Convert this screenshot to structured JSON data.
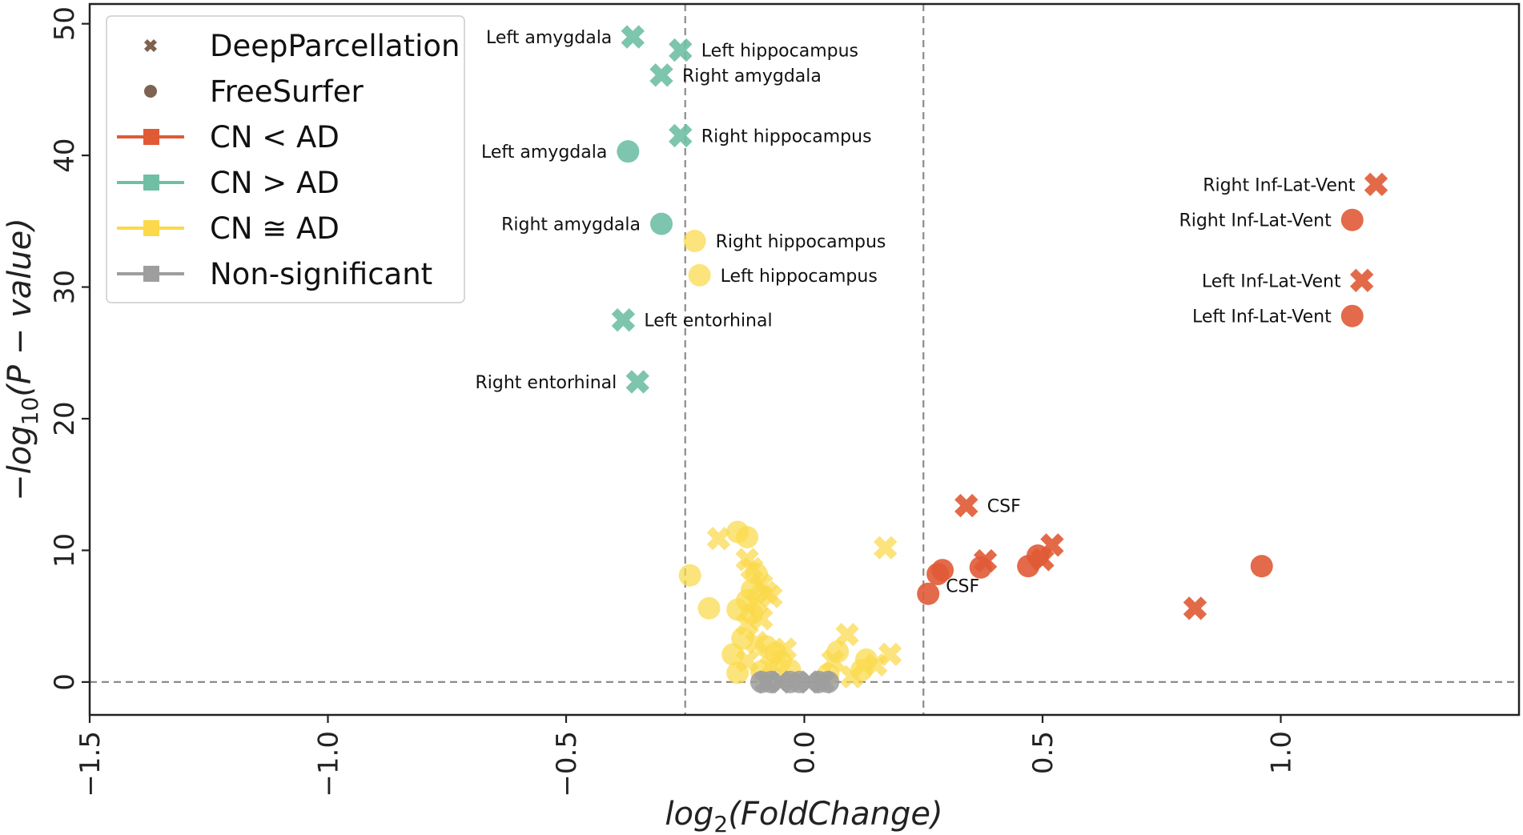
{
  "chart_data": {
    "type": "scatter",
    "title": "",
    "xlabel": "log2(FoldChange)",
    "ylabel": "-log10(P - value)",
    "xlim": [
      -1.5,
      1.5
    ],
    "ylim": [
      -2.5,
      51.5
    ],
    "xticks": [
      -1.5,
      -1.0,
      -0.5,
      0.0,
      0.5,
      1.0
    ],
    "xtick_labels": [
      "-1.5",
      "-1.0",
      "-0.5",
      "0.0",
      "0.5",
      "1.0"
    ],
    "yticks": [
      0,
      10,
      20,
      30,
      40,
      50
    ],
    "ytick_labels": [
      "0",
      "10",
      "20",
      "30",
      "40",
      "50"
    ],
    "thresholds": {
      "x": [
        -0.25,
        0.25
      ],
      "y": 0
    },
    "colors": {
      "cn_lt_ad": "#e05a36",
      "cn_gt_ad": "#6fbfa5",
      "cn_approx_ad": "#fbd94a",
      "non_significant": "#9e9e9e",
      "marker_legend": "#7d6350",
      "axis": "#222222",
      "threshold": "#8c8c8c"
    },
    "legend": {
      "position": "top-left",
      "entries": [
        {
          "label": "DeepParcellation",
          "kind": "marker",
          "shape": "x"
        },
        {
          "label": "FreeSurfer",
          "kind": "marker",
          "shape": "circle"
        },
        {
          "label": "CN < AD",
          "kind": "line",
          "group": "cn_lt_ad"
        },
        {
          "label": "CN > AD",
          "kind": "line",
          "group": "cn_gt_ad"
        },
        {
          "label": "CN ≅ AD",
          "kind": "line",
          "group": "cn_approx_ad"
        },
        {
          "label": "Non-significant",
          "kind": "line",
          "group": "non_significant"
        }
      ]
    },
    "series": [
      {
        "name": "CN > AD",
        "group": "cn_gt_ad",
        "points": [
          {
            "x": -0.36,
            "y": 49.0,
            "marker": "x",
            "label": "Left amygdala",
            "label_side": "left"
          },
          {
            "x": -0.26,
            "y": 48.0,
            "marker": "x",
            "label": "Left hippocampus",
            "label_side": "right"
          },
          {
            "x": -0.3,
            "y": 46.1,
            "marker": "x",
            "label": "Right amygdala",
            "label_side": "right"
          },
          {
            "x": -0.26,
            "y": 41.5,
            "marker": "x",
            "label": "Right hippocampus",
            "label_side": "right"
          },
          {
            "x": -0.37,
            "y": 40.3,
            "marker": "o",
            "label": "Left amygdala",
            "label_side": "left"
          },
          {
            "x": -0.3,
            "y": 34.8,
            "marker": "o",
            "label": "Right amygdala",
            "label_side": "left"
          },
          {
            "x": -0.38,
            "y": 27.5,
            "marker": "x",
            "label": "Left entorhinal",
            "label_side": "right"
          },
          {
            "x": -0.35,
            "y": 22.8,
            "marker": "x",
            "label": "Right entorhinal",
            "label_side": "left"
          }
        ]
      },
      {
        "name": "CN < AD",
        "group": "cn_lt_ad",
        "points": [
          {
            "x": 1.2,
            "y": 37.8,
            "marker": "x",
            "label": "Right Inf-Lat-Vent",
            "label_side": "left"
          },
          {
            "x": 1.15,
            "y": 35.1,
            "marker": "o",
            "label": "Right Inf-Lat-Vent",
            "label_side": "left"
          },
          {
            "x": 1.17,
            "y": 30.5,
            "marker": "x",
            "label": "Left Inf-Lat-Vent",
            "label_side": "left"
          },
          {
            "x": 1.15,
            "y": 27.8,
            "marker": "o",
            "label": "Left Inf-Lat-Vent",
            "label_side": "left"
          },
          {
            "x": 0.34,
            "y": 13.4,
            "marker": "x",
            "label": "CSF",
            "label_side": "right"
          },
          {
            "x": 0.26,
            "y": 6.7,
            "marker": "o",
            "label": "CSF",
            "label_side": "rightdown"
          },
          {
            "x": 0.28,
            "y": 8.2,
            "marker": "o"
          },
          {
            "x": 0.29,
            "y": 8.5,
            "marker": "o"
          },
          {
            "x": 0.37,
            "y": 8.7,
            "marker": "o"
          },
          {
            "x": 0.38,
            "y": 9.2,
            "marker": "x"
          },
          {
            "x": 0.47,
            "y": 8.8,
            "marker": "o"
          },
          {
            "x": 0.49,
            "y": 9.6,
            "marker": "o"
          },
          {
            "x": 0.5,
            "y": 9.3,
            "marker": "x"
          },
          {
            "x": 0.52,
            "y": 10.4,
            "marker": "x"
          },
          {
            "x": 0.96,
            "y": 8.8,
            "marker": "o"
          },
          {
            "x": 0.82,
            "y": 5.6,
            "marker": "x"
          }
        ]
      },
      {
        "name": "CN ≅ AD",
        "group": "cn_approx_ad",
        "points": [
          {
            "x": -0.23,
            "y": 33.5,
            "marker": "o",
            "label": "Right hippocampus",
            "label_side": "right"
          },
          {
            "x": -0.22,
            "y": 30.9,
            "marker": "o",
            "label": "Left hippocampus",
            "label_side": "right"
          },
          {
            "x": 0.17,
            "y": 10.2,
            "marker": "x"
          },
          {
            "x": -0.24,
            "y": 8.1,
            "marker": "o"
          },
          {
            "x": -0.2,
            "y": 5.6,
            "marker": "o"
          },
          {
            "x": -0.18,
            "y": 10.9,
            "marker": "x"
          },
          {
            "x": -0.14,
            "y": 11.4,
            "marker": "o"
          },
          {
            "x": -0.12,
            "y": 11.0,
            "marker": "o"
          },
          {
            "x": -0.12,
            "y": 9.3,
            "marker": "x"
          },
          {
            "x": -0.11,
            "y": 8.6,
            "marker": "x"
          },
          {
            "x": -0.1,
            "y": 8.2,
            "marker": "o"
          },
          {
            "x": -0.09,
            "y": 7.4,
            "marker": "x"
          },
          {
            "x": -0.11,
            "y": 7.0,
            "marker": "o"
          },
          {
            "x": -0.08,
            "y": 6.8,
            "marker": "x"
          },
          {
            "x": -0.07,
            "y": 6.5,
            "marker": "x"
          },
          {
            "x": -0.12,
            "y": 6.2,
            "marker": "o"
          },
          {
            "x": -0.1,
            "y": 6.0,
            "marker": "x"
          },
          {
            "x": -0.14,
            "y": 5.5,
            "marker": "o"
          },
          {
            "x": -0.11,
            "y": 5.2,
            "marker": "o"
          },
          {
            "x": -0.09,
            "y": 4.8,
            "marker": "x"
          },
          {
            "x": -0.12,
            "y": 4.4,
            "marker": "x"
          },
          {
            "x": -0.13,
            "y": 3.3,
            "marker": "o"
          },
          {
            "x": -0.1,
            "y": 3.0,
            "marker": "x"
          },
          {
            "x": -0.15,
            "y": 2.1,
            "marker": "o"
          },
          {
            "x": -0.12,
            "y": 1.6,
            "marker": "x"
          },
          {
            "x": -0.14,
            "y": 0.7,
            "marker": "o"
          },
          {
            "x": -0.08,
            "y": 2.7,
            "marker": "o"
          },
          {
            "x": -0.06,
            "y": 2.2,
            "marker": "o"
          },
          {
            "x": -0.04,
            "y": 2.5,
            "marker": "x"
          },
          {
            "x": -0.05,
            "y": 1.6,
            "marker": "o"
          },
          {
            "x": -0.07,
            "y": 1.2,
            "marker": "x"
          },
          {
            "x": -0.03,
            "y": 0.9,
            "marker": "o"
          },
          {
            "x": -0.09,
            "y": 0.8,
            "marker": "o"
          },
          {
            "x": 0.07,
            "y": 2.3,
            "marker": "o"
          },
          {
            "x": 0.09,
            "y": 3.6,
            "marker": "x"
          },
          {
            "x": 0.06,
            "y": 1.6,
            "marker": "x"
          },
          {
            "x": 0.13,
            "y": 1.7,
            "marker": "o"
          },
          {
            "x": 0.15,
            "y": 1.3,
            "marker": "x"
          },
          {
            "x": 0.18,
            "y": 2.1,
            "marker": "x"
          },
          {
            "x": 0.12,
            "y": 0.9,
            "marker": "o"
          },
          {
            "x": 0.1,
            "y": 0.4,
            "marker": "x"
          },
          {
            "x": 0.05,
            "y": 0.6,
            "marker": "o"
          }
        ]
      },
      {
        "name": "Non-significant",
        "group": "non_significant",
        "points": [
          {
            "x": -0.09,
            "y": 0.0,
            "marker": "o"
          },
          {
            "x": -0.07,
            "y": 0.0,
            "marker": "o"
          },
          {
            "x": -0.05,
            "y": 0.0,
            "marker": "x"
          },
          {
            "x": -0.03,
            "y": 0.0,
            "marker": "o"
          },
          {
            "x": -0.01,
            "y": 0.0,
            "marker": "o"
          },
          {
            "x": 0.01,
            "y": 0.0,
            "marker": "x"
          },
          {
            "x": 0.03,
            "y": 0.0,
            "marker": "o"
          },
          {
            "x": 0.05,
            "y": 0.0,
            "marker": "o"
          },
          {
            "x": -0.08,
            "y": 0.0,
            "marker": "x"
          },
          {
            "x": 0.04,
            "y": 0.0,
            "marker": "x"
          }
        ]
      }
    ]
  }
}
